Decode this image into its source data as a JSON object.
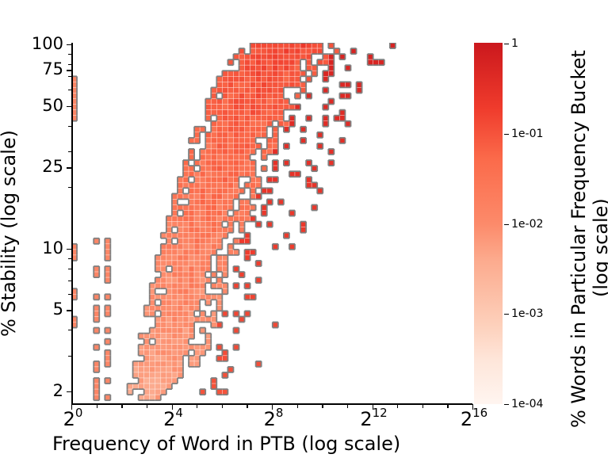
{
  "chart_data": {
    "type": "heatmap",
    "title": "",
    "xlabel": "Frequency of Word in PTB (log scale)",
    "ylabel": "% Stability (log scale)",
    "x_scale": "log2",
    "y_scale": "log",
    "xlim": [
      1,
      65536
    ],
    "ylim": [
      1.7,
      100
    ],
    "x_ticks": [
      {
        "base": "2",
        "exp": "0",
        "value": 1
      },
      {
        "base": "2",
        "exp": "4",
        "value": 16
      },
      {
        "base": "2",
        "exp": "8",
        "value": 256
      },
      {
        "base": "2",
        "exp": "12",
        "value": 4096
      },
      {
        "base": "2",
        "exp": "16",
        "value": 65536
      }
    ],
    "y_ticks": [
      "100",
      "75",
      "50",
      "25",
      "10",
      "5",
      "2"
    ],
    "colorbar": {
      "label_line1": "% Words in Particular Frequency Bucket",
      "label_line2": "(log scale)",
      "scale": "log",
      "range": [
        0.0001,
        1
      ],
      "ticks": [
        "1",
        "1e-01",
        "1e-02",
        "1e-03",
        "1e-04"
      ],
      "colormap": "Reds",
      "color_max": "#cb181d",
      "color_min": "#fff5f0"
    },
    "description": "2D log-binned density of words by PTB frequency (x) vs % stability (y). Density forms a diagonal band rising from low-frequency/low-stability (x≈2^2–2^4, y≈2–25) to high-frequency/high-stability (x≈2^8–2^12, y≈60–100). Sparse outlier cells near x=2^0 (y≈40–70, and ~4–10), and isolated high-frequency cells up to x≈2^15.6 at y≈35–75.",
    "outline_color": "#808080"
  }
}
